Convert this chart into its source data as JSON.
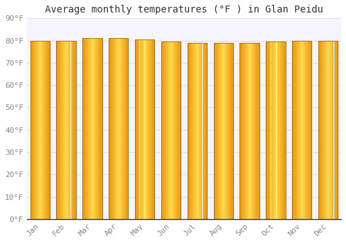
{
  "title": "Average monthly temperatures (°F ) in Glan Peidu",
  "months": [
    "Jan",
    "Feb",
    "Mar",
    "Apr",
    "May",
    "Jun",
    "Jul",
    "Aug",
    "Sep",
    "Oct",
    "Nov",
    "Dec"
  ],
  "values": [
    80,
    80,
    81,
    81.2,
    80.5,
    79.5,
    79,
    79,
    79,
    79.5,
    80,
    80
  ],
  "ylim": [
    0,
    90
  ],
  "yticks": [
    0,
    10,
    20,
    30,
    40,
    50,
    60,
    70,
    80,
    90
  ],
  "ytick_labels": [
    "0°F",
    "10°F",
    "20°F",
    "30°F",
    "40°F",
    "50°F",
    "60°F",
    "70°F",
    "80°F",
    "90°F"
  ],
  "bar_color_center": "#FFD84E",
  "bar_color_edge": "#E8950A",
  "bar_outline_color": "#A07010",
  "background_color": "#FFFFFF",
  "plot_bg_color": "#F5F5FF",
  "grid_color": "#E0E0EE",
  "title_fontsize": 10,
  "tick_fontsize": 8,
  "font_family": "monospace",
  "tick_color": "#888888",
  "spine_color": "#333333"
}
